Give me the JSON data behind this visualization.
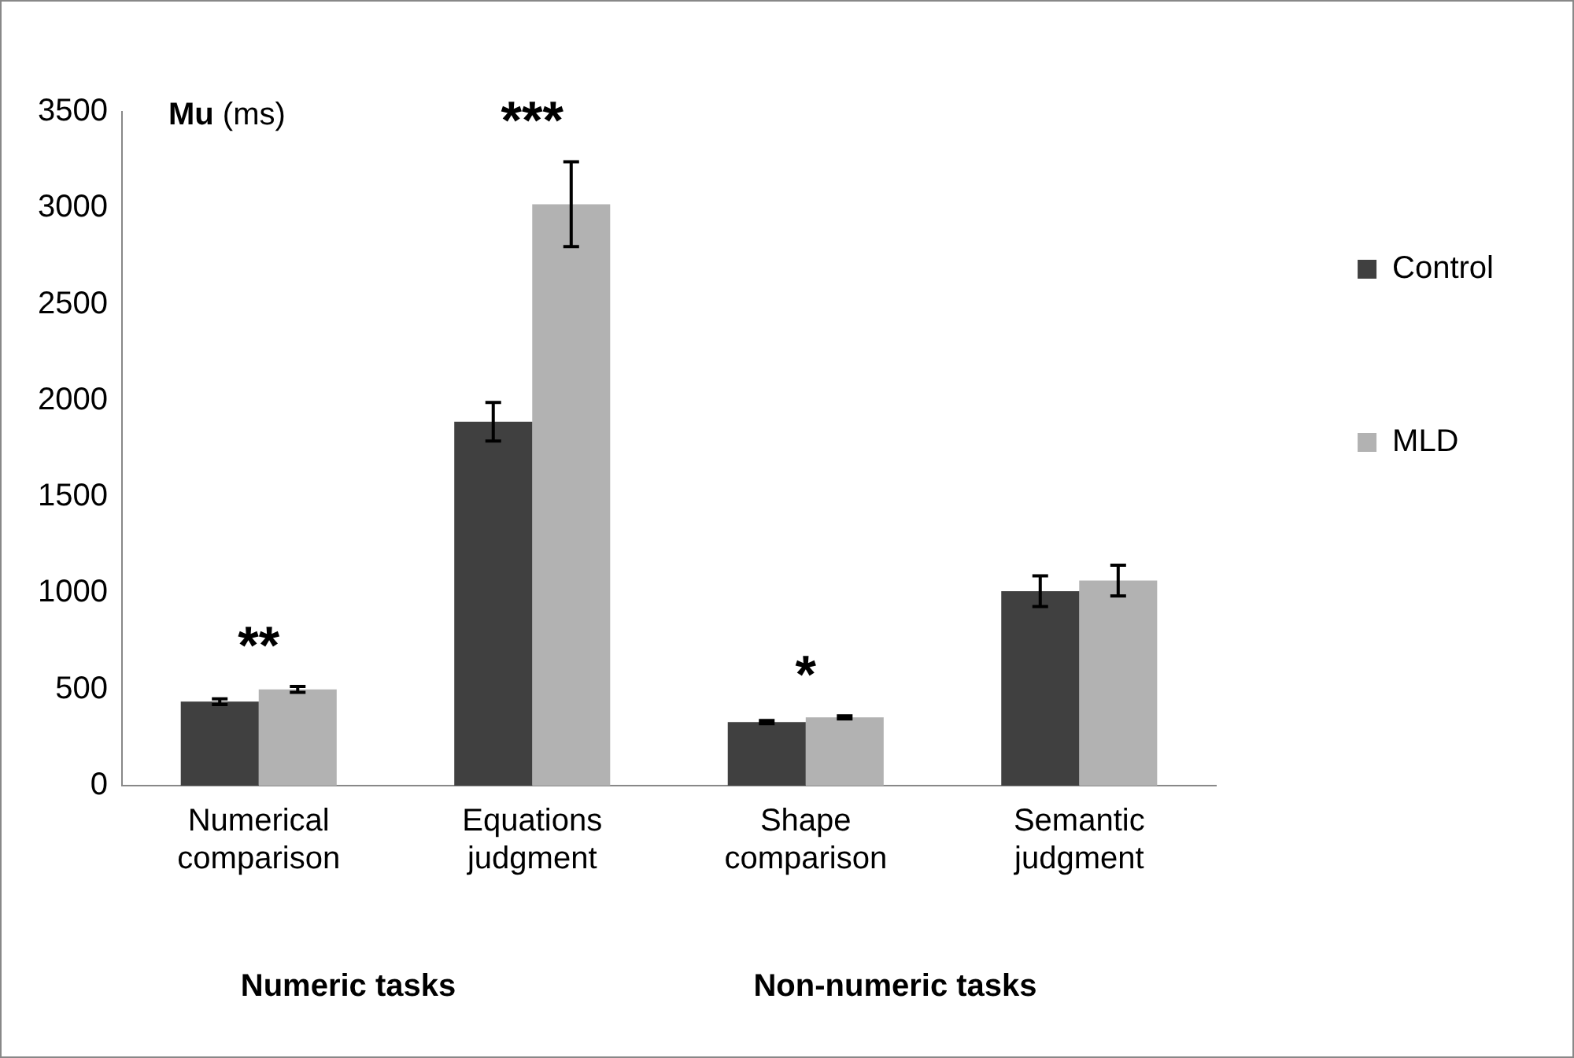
{
  "chart_data": {
    "type": "bar",
    "ylabel": "Mu (ms)",
    "categories": [
      "Numerical comparison",
      "Equations judgment",
      "Shape comparison",
      "Semantic judgment"
    ],
    "series": [
      {
        "name": "Control",
        "color": "#404040",
        "values": [
          436,
          1890,
          330,
          1010
        ],
        "errors": [
          15,
          100,
          8,
          80
        ]
      },
      {
        "name": "MLD",
        "color": "#b2b2b2",
        "values": [
          500,
          3020,
          355,
          1065
        ],
        "errors": [
          15,
          220,
          8,
          80
        ]
      }
    ],
    "ylim": [
      0,
      3500
    ],
    "yticks": [
      0,
      500,
      1000,
      1500,
      2000,
      2500,
      3000,
      3500
    ],
    "grid": false,
    "legend": "right",
    "annotations": [
      "**",
      "***",
      "*",
      "Numeric tasks",
      "Non-numeric tasks"
    ]
  }
}
